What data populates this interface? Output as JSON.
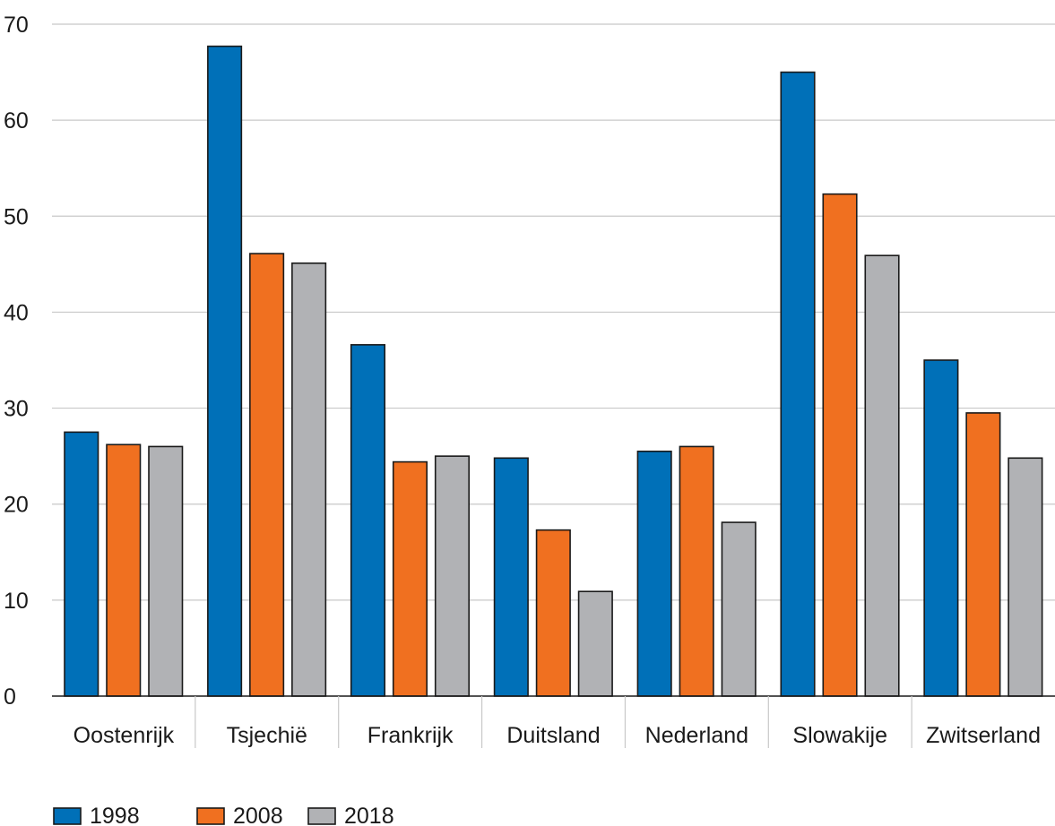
{
  "chart_data": {
    "type": "bar",
    "title": "",
    "xlabel": "",
    "ylabel": "",
    "ylim": [
      0,
      70
    ],
    "yticks": [
      0,
      10,
      20,
      30,
      40,
      50,
      60,
      70
    ],
    "grid": true,
    "legend_position": "bottom-left",
    "categories": [
      "Oostenrijk",
      "Tsjechië",
      "Frankrijk",
      "Duitsland",
      "Nederland",
      "Slowakije",
      "Zwitserland"
    ],
    "series": [
      {
        "name": "1998",
        "color": "#0070b8",
        "values": [
          27.5,
          67.7,
          36.6,
          24.8,
          25.5,
          65.0,
          35.0
        ]
      },
      {
        "name": "2008",
        "color": "#f07020",
        "values": [
          26.2,
          46.1,
          24.4,
          17.3,
          26.0,
          52.3,
          29.5
        ]
      },
      {
        "name": "2018",
        "color": "#b1b2b5",
        "values": [
          26.0,
          45.1,
          25.0,
          10.9,
          18.1,
          45.9,
          24.8
        ]
      }
    ]
  }
}
